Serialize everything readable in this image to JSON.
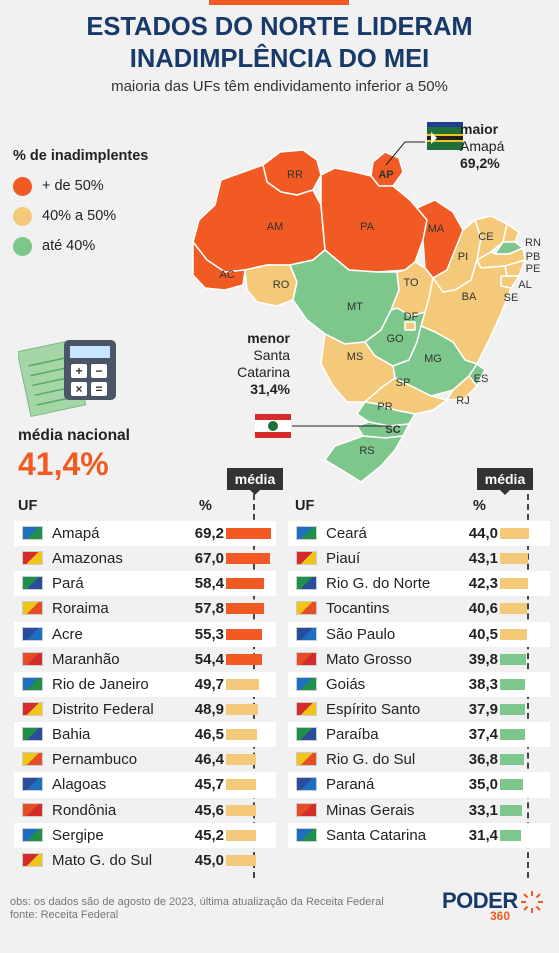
{
  "header": {
    "title_line1": "ESTADOS DO NORTE LIDERAM",
    "title_line2": "INADIMPLÊNCIA DO MEI",
    "subtitle": "maioria das UFs têm endividamento inferior a 50%"
  },
  "legend": {
    "title": "% de inadimplentes",
    "items": [
      {
        "label": "+ de 50%",
        "color": "#f15a22"
      },
      {
        "label": "40% a 50%",
        "color": "#f5c97a"
      },
      {
        "label": "até 40%",
        "color": "#7dc78c"
      }
    ]
  },
  "callouts": {
    "maior": {
      "label": "maior",
      "state": "Amapá",
      "value": "69,2%"
    },
    "menor": {
      "label": "menor",
      "state_line1": "Santa",
      "state_line2": "Catarina",
      "value": "31,4%"
    }
  },
  "map_labels": {
    "RR": "RR",
    "AP": "AP",
    "AM": "AM",
    "PA": "PA",
    "MA": "MA",
    "CE": "CE",
    "RN": "RN",
    "PB": "PB",
    "PE": "PE",
    "PI": "PI",
    "AL": "AL",
    "SE": "SE",
    "BA": "BA",
    "TO": "TO",
    "AC": "AC",
    "RO": "RO",
    "MT": "MT",
    "DF": "DF",
    "GO": "GO",
    "MG": "MG",
    "ES": "ES",
    "MS": "MS",
    "SP": "SP",
    "RJ": "RJ",
    "PR": "PR",
    "SC": "SC",
    "RS": "RS"
  },
  "national_average": {
    "label": "média nacional",
    "value": "41,4%"
  },
  "media_tag": "média",
  "colors": {
    "high": "#f15a22",
    "mid": "#f5c97a",
    "low": "#7dc78c"
  },
  "columns": {
    "uf": "UF",
    "pct": "%"
  },
  "chart_data": {
    "type": "bar",
    "average": 41.4,
    "xlim": [
      0,
      70
    ],
    "left": [
      {
        "name": "Amapá",
        "value": "69,2",
        "v": 69.2
      },
      {
        "name": "Amazonas",
        "value": "67,0",
        "v": 67.0
      },
      {
        "name": "Pará",
        "value": "58,4",
        "v": 58.4
      },
      {
        "name": "Roraima",
        "value": "57,8",
        "v": 57.8
      },
      {
        "name": "Acre",
        "value": "55,3",
        "v": 55.3
      },
      {
        "name": "Maranhão",
        "value": "54,4",
        "v": 54.4
      },
      {
        "name": "Rio de Janeiro",
        "value": "49,7",
        "v": 49.7
      },
      {
        "name": "Distrito Federal",
        "value": "48,9",
        "v": 48.9
      },
      {
        "name": "Bahia",
        "value": "46,5",
        "v": 46.5
      },
      {
        "name": "Pernambuco",
        "value": "46,4",
        "v": 46.4
      },
      {
        "name": "Alagoas",
        "value": "45,7",
        "v": 45.7
      },
      {
        "name": "Rondônia",
        "value": "45,6",
        "v": 45.6
      },
      {
        "name": "Sergipe",
        "value": "45,2",
        "v": 45.2
      },
      {
        "name": "Mato G. do Sul",
        "value": "45,0",
        "v": 45.0
      }
    ],
    "right": [
      {
        "name": "Ceará",
        "value": "44,0",
        "v": 44.0
      },
      {
        "name": "Piauí",
        "value": "43,1",
        "v": 43.1
      },
      {
        "name": "Rio G. do Norte",
        "value": "42,3",
        "v": 42.3
      },
      {
        "name": "Tocantins",
        "value": "40,6",
        "v": 40.6
      },
      {
        "name": "São Paulo",
        "value": "40,5",
        "v": 40.5
      },
      {
        "name": "Mato Grosso",
        "value": "39,8",
        "v": 39.8
      },
      {
        "name": "Goiás",
        "value": "38,3",
        "v": 38.3
      },
      {
        "name": "Espírito Santo",
        "value": "37,9",
        "v": 37.9
      },
      {
        "name": "Paraíba",
        "value": "37,4",
        "v": 37.4
      },
      {
        "name": "Rio G. do Sul",
        "value": "36,8",
        "v": 36.8
      },
      {
        "name": "Paraná",
        "value": "35,0",
        "v": 35.0
      },
      {
        "name": "Minas Gerais",
        "value": "33,1",
        "v": 33.1
      },
      {
        "name": "Santa Catarina",
        "value": "31,4",
        "v": 31.4
      }
    ]
  },
  "footer": {
    "note": "obs: os dados são de agosto de 2023, última atualização da Receita Federal",
    "source": "fonte: Receita Federal",
    "logo_text": "PODER",
    "logo_number": "360"
  }
}
